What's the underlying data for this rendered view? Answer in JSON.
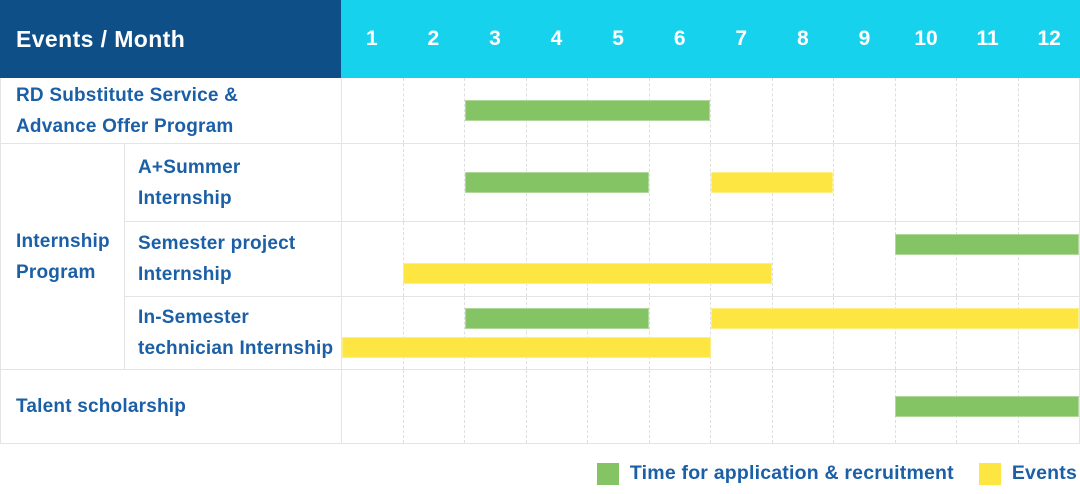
{
  "header": {
    "title": "Events / Month"
  },
  "colors": {
    "header_bg": "#0e4f88",
    "months_header_bg": "#17d2ec",
    "header_text": "#ffffff",
    "row_label_text": "#1b5fa6",
    "grid_line": "#e4e4e4",
    "application": "#85c464",
    "events": "#fde642"
  },
  "chart_data": {
    "type": "bar",
    "variant": "gantt-schedule",
    "title": "Events / Month",
    "x_ticks": [
      "1",
      "2",
      "3",
      "4",
      "5",
      "6",
      "7",
      "8",
      "9",
      "10",
      "11",
      "12"
    ],
    "x_range": [
      1,
      12
    ],
    "grid": "dashed-vertical-month-lines",
    "legend_position": "bottom-right",
    "legend": [
      {
        "name": "Time for application & recruitment",
        "key": "application",
        "color": "#85c464"
      },
      {
        "name": "Events",
        "key": "events",
        "color": "#fde642"
      }
    ],
    "rows": [
      {
        "label_lines": [
          "RD Substitute Service &",
          "Advance Offer Program"
        ],
        "bars": [
          {
            "kind": "application",
            "start_month": 3,
            "end_month": 6,
            "lane": "center"
          }
        ]
      },
      {
        "group_label_lines": [
          "Internship",
          "Program"
        ],
        "subrows": [
          {
            "label_lines": [
              "A+Summer",
              "Internship"
            ],
            "bars": [
              {
                "kind": "application",
                "start_month": 3,
                "end_month": 5,
                "lane": "center"
              },
              {
                "kind": "events",
                "start_month": 7,
                "end_month": 8,
                "lane": "center"
              }
            ]
          },
          {
            "label_lines": [
              "Semester project",
              "Internship"
            ],
            "bars": [
              {
                "kind": "application",
                "start_month": 10,
                "end_month": 12,
                "lane": "upper"
              },
              {
                "kind": "events",
                "start_month": 2,
                "end_month": 7,
                "lane": "lower"
              }
            ]
          },
          {
            "label_lines": [
              "In-Semester",
              "technician Internship"
            ],
            "bars": [
              {
                "kind": "application",
                "start_month": 3,
                "end_month": 5,
                "lane": "upper"
              },
              {
                "kind": "events",
                "start_month": 7,
                "end_month": 12,
                "lane": "upper"
              },
              {
                "kind": "events",
                "start_month": 1,
                "end_month": 6,
                "lane": "lower"
              }
            ]
          }
        ]
      },
      {
        "label_lines": [
          "Talent scholarship"
        ],
        "bars": [
          {
            "kind": "application",
            "start_month": 10,
            "end_month": 12,
            "lane": "center"
          }
        ]
      }
    ]
  }
}
